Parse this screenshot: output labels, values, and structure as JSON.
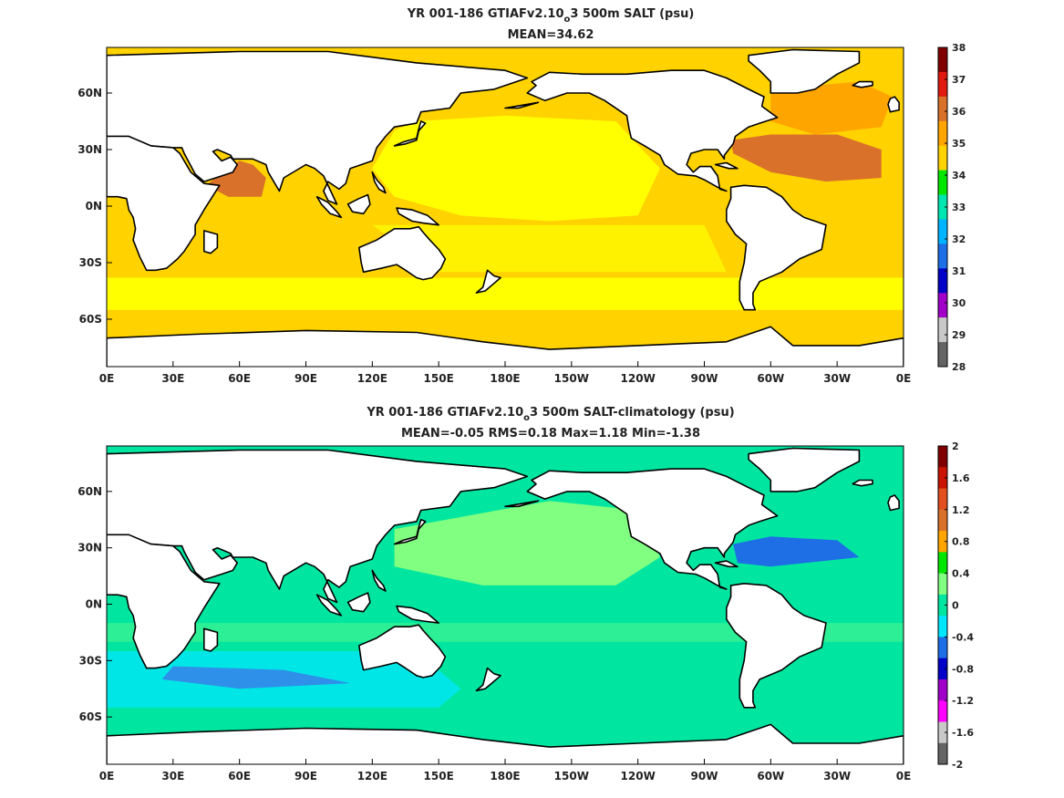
{
  "chart_data": [
    {
      "type": "heatmap",
      "title_line1_pre": "YR 001-186 GTIAFv2.10",
      "title_sub": "o",
      "title_line1_post": "3 500m SALT (psu)",
      "title_line2": "MEAN=34.62",
      "xticks": [
        "0E",
        "30E",
        "60E",
        "90E",
        "120E",
        "150E",
        "180E",
        "150W",
        "120W",
        "90W",
        "60W",
        "30W",
        "0E"
      ],
      "yticks": [
        "60N",
        "30N",
        "0N",
        "30S",
        "60S"
      ],
      "colorbar": {
        "ticks": [
          "38",
          "37",
          "36",
          "35",
          "34",
          "33",
          "32",
          "31",
          "30",
          "29",
          "28"
        ],
        "colors": [
          "#800000",
          "#e01a10",
          "#d9712a",
          "#ffa500",
          "#ffd200",
          "#00e600",
          "#00e6b0",
          "#00b4ff",
          "#1e6ee6",
          "#0000c8",
          "#a000c8",
          "#c8c8c8",
          "#646464"
        ]
      },
      "fields": {
        "polar": "#ffd200",
        "north_atlantic": "#ffa500",
        "subtropical_atlantic": "#d9712a",
        "mediterranean": "#800000",
        "arabian_sea": "#d9712a",
        "indian": "#ffd200",
        "pacific": "#ffff00",
        "southern_band": "#ffff00"
      }
    },
    {
      "type": "heatmap",
      "title_line1_pre": "YR 001-186 GTIAFv2.10",
      "title_sub": "o",
      "title_line1_post": "3 500m SALT-climatology (psu)",
      "title_line2": "MEAN=-0.05   RMS=0.18   Max=1.18   Min=-1.38",
      "xticks": [
        "0E",
        "30E",
        "60E",
        "90E",
        "120E",
        "150E",
        "180E",
        "150W",
        "120W",
        "90W",
        "60W",
        "30W",
        "0E"
      ],
      "yticks": [
        "60N",
        "30N",
        "0N",
        "30S",
        "60S"
      ],
      "colorbar": {
        "ticks": [
          "2",
          "1.6",
          "1.2",
          "0.8",
          "0.4",
          "0",
          "-0.4",
          "-0.8",
          "-1.2",
          "-1.6",
          "-2"
        ],
        "colors": [
          "#800000",
          "#c81400",
          "#e1501e",
          "#d9712a",
          "#ffa500",
          "#00e600",
          "#80ff80",
          "#00e6a0",
          "#00e6ff",
          "#1e6ee6",
          "#0000c8",
          "#a000c8",
          "#ff00ff",
          "#c8c8c8",
          "#646464"
        ]
      },
      "fields": {
        "base": "#00e6a0",
        "pacific_north": "#80ff80",
        "gulf_stream": "#1e6ee6",
        "southern_indian": "#00e6ff",
        "southern_strong": "#3a7ae8",
        "tropics": "#00e6a0"
      }
    }
  ]
}
